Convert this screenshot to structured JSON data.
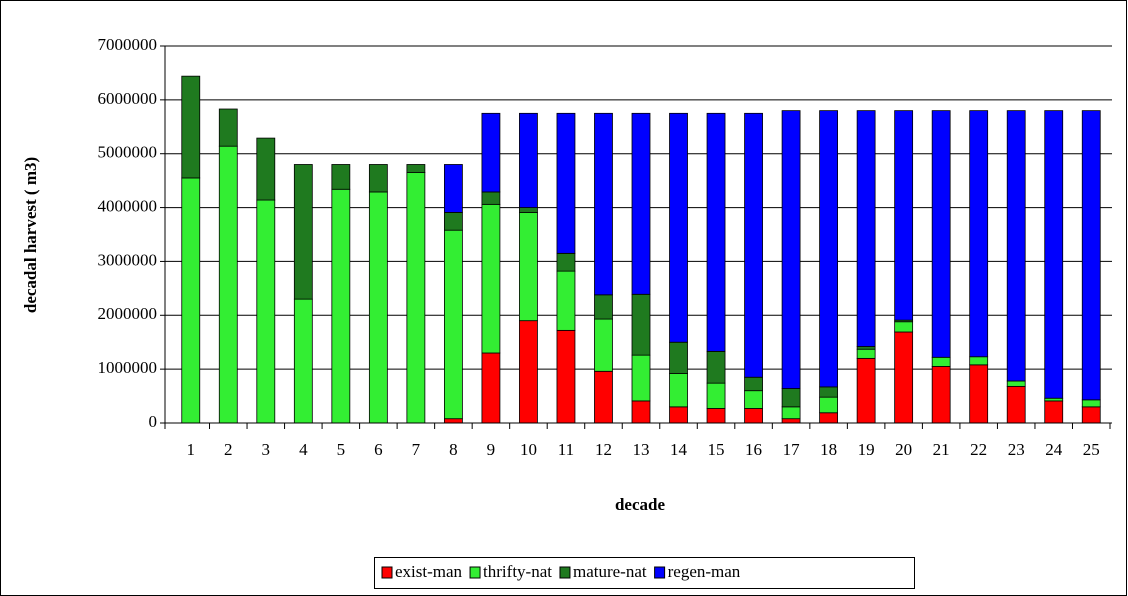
{
  "chart_data": {
    "type": "stacked-bar",
    "x_label": "decade",
    "y_label": "decadal harvest ( m3)",
    "categories": [
      "1",
      "2",
      "3",
      "4",
      "5",
      "6",
      "7",
      "8",
      "9",
      "10",
      "11",
      "12",
      "13",
      "14",
      "15",
      "16",
      "17",
      "18",
      "19",
      "20",
      "21",
      "22",
      "23",
      "24",
      "25"
    ],
    "series": [
      {
        "name": "exist-man",
        "color": "#ff0000",
        "values": [
          0,
          0,
          0,
          0,
          0,
          0,
          0,
          80000,
          1300000,
          1900000,
          1720000,
          960000,
          410000,
          300000,
          270000,
          270000,
          80000,
          190000,
          1200000,
          1690000,
          1050000,
          1080000,
          680000,
          410000,
          300000
        ]
      },
      {
        "name": "thrifty-nat",
        "color": "#33ee33",
        "values": [
          4550000,
          5140000,
          4140000,
          2300000,
          4340000,
          4290000,
          4650000,
          3500000,
          2760000,
          2010000,
          1100000,
          970000,
          850000,
          620000,
          470000,
          330000,
          220000,
          290000,
          170000,
          190000,
          170000,
          150000,
          100000,
          50000,
          130000
        ]
      },
      {
        "name": "mature-nat",
        "color": "#1f7a1f",
        "values": [
          1890000,
          690000,
          1150000,
          2500000,
          460000,
          510000,
          150000,
          330000,
          230000,
          90000,
          330000,
          450000,
          1130000,
          580000,
          590000,
          250000,
          340000,
          190000,
          50000,
          30000,
          0,
          0,
          0,
          0,
          0
        ]
      },
      {
        "name": "regen-man",
        "color": "#0000ff",
        "values": [
          0,
          0,
          0,
          0,
          0,
          0,
          0,
          890000,
          1460000,
          1750000,
          2600000,
          3370000,
          3360000,
          4250000,
          4420000,
          4900000,
          5160000,
          5130000,
          4380000,
          3890000,
          4580000,
          4570000,
          5020000,
          5340000,
          5370000
        ]
      }
    ],
    "ylim": [
      0,
      7000000
    ],
    "yticks": [
      0,
      1000000,
      2000000,
      3000000,
      4000000,
      5000000,
      6000000,
      7000000
    ],
    "grid": true
  }
}
